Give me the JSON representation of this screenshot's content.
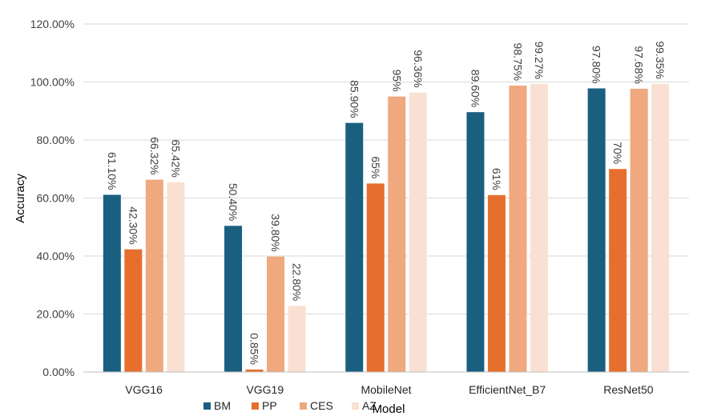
{
  "chart_data": {
    "type": "bar",
    "title": "",
    "xlabel": "Model",
    "ylabel": "Accuracy",
    "ylim": [
      0,
      120
    ],
    "ytick_values": [
      0,
      20,
      40,
      60,
      80,
      100,
      120
    ],
    "ytick_labels": [
      "0.00%",
      "20.00%",
      "40.00%",
      "60.00%",
      "80.00%",
      "100.00%",
      "120.00%"
    ],
    "grid": true,
    "legend_position": "bottom",
    "categories": [
      "VGG16",
      "VGG19",
      "MobileNet",
      "EfficientNet_B7",
      "ResNet50"
    ],
    "series": [
      {
        "name": "BM",
        "color": "#1a5f80",
        "values": [
          61.1,
          50.4,
          85.9,
          89.6,
          97.8
        ],
        "labels": [
          "61.10%",
          "50.40%",
          "85.90%",
          "89.60%",
          "97.80%"
        ]
      },
      {
        "name": "PP",
        "color": "#e66f2e",
        "values": [
          42.3,
          0.85,
          65,
          61,
          70
        ],
        "labels": [
          "42.30%",
          "0.85%",
          "65%",
          "61%",
          "70%"
        ]
      },
      {
        "name": "CES",
        "color": "#f0a87e",
        "values": [
          66.32,
          39.8,
          95,
          98.75,
          97.68
        ],
        "labels": [
          "66.32%",
          "39.80%",
          "95%",
          "98.75%",
          "97.68%"
        ]
      },
      {
        "name": "AZ",
        "color": "#fae0d2",
        "values": [
          65.42,
          22.8,
          96.36,
          99.27,
          99.35
        ],
        "labels": [
          "65.42%",
          "22.80%",
          "96.36%",
          "99.27%",
          "99.35%"
        ]
      }
    ]
  }
}
